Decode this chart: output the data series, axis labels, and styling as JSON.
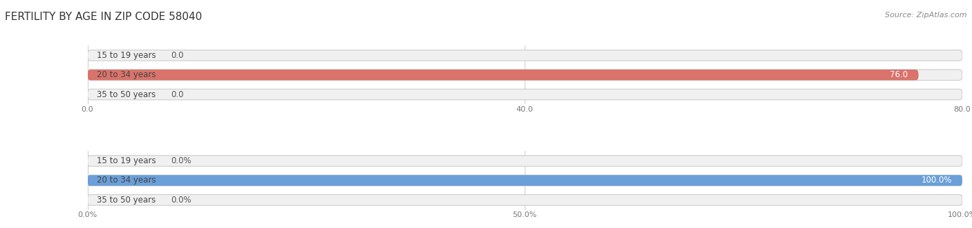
{
  "title": "FERTILITY BY AGE IN ZIP CODE 58040",
  "source_text": "Source: ZipAtlas.com",
  "label_color": "#444444",
  "label_fontsize": 8.5,
  "value_fontsize": 8.5,
  "tick_fontsize": 8,
  "bg_color": "#ffffff",
  "bar_height": 0.55,
  "top_chart": {
    "categories": [
      "15 to 19 years",
      "20 to 34 years",
      "35 to 50 years"
    ],
    "values": [
      0.0,
      76.0,
      0.0
    ],
    "xlim": [
      0,
      80.0
    ],
    "xticks": [
      0.0,
      40.0,
      80.0
    ],
    "xtick_labels": [
      "0.0",
      "40.0",
      "80.0"
    ],
    "bar_color": "#d9736b",
    "bar_bg_color": "#f0f0f0",
    "bar_border_color": "#cccccc",
    "value_color_inside": "#ffffff",
    "value_color_outside": "#555555",
    "label_small_value_threshold": 5.0
  },
  "bottom_chart": {
    "categories": [
      "15 to 19 years",
      "20 to 34 years",
      "35 to 50 years"
    ],
    "values": [
      0.0,
      100.0,
      0.0
    ],
    "xlim": [
      0,
      100.0
    ],
    "xticks": [
      0.0,
      50.0,
      100.0
    ],
    "xtick_labels": [
      "0.0%",
      "50.0%",
      "100.0%"
    ],
    "bar_color": "#6a9fd8",
    "bar_bg_color": "#f0f0f0",
    "bar_border_color": "#cccccc",
    "value_color_inside": "#ffffff",
    "value_color_outside": "#555555",
    "label_small_value_threshold": 5.0
  }
}
